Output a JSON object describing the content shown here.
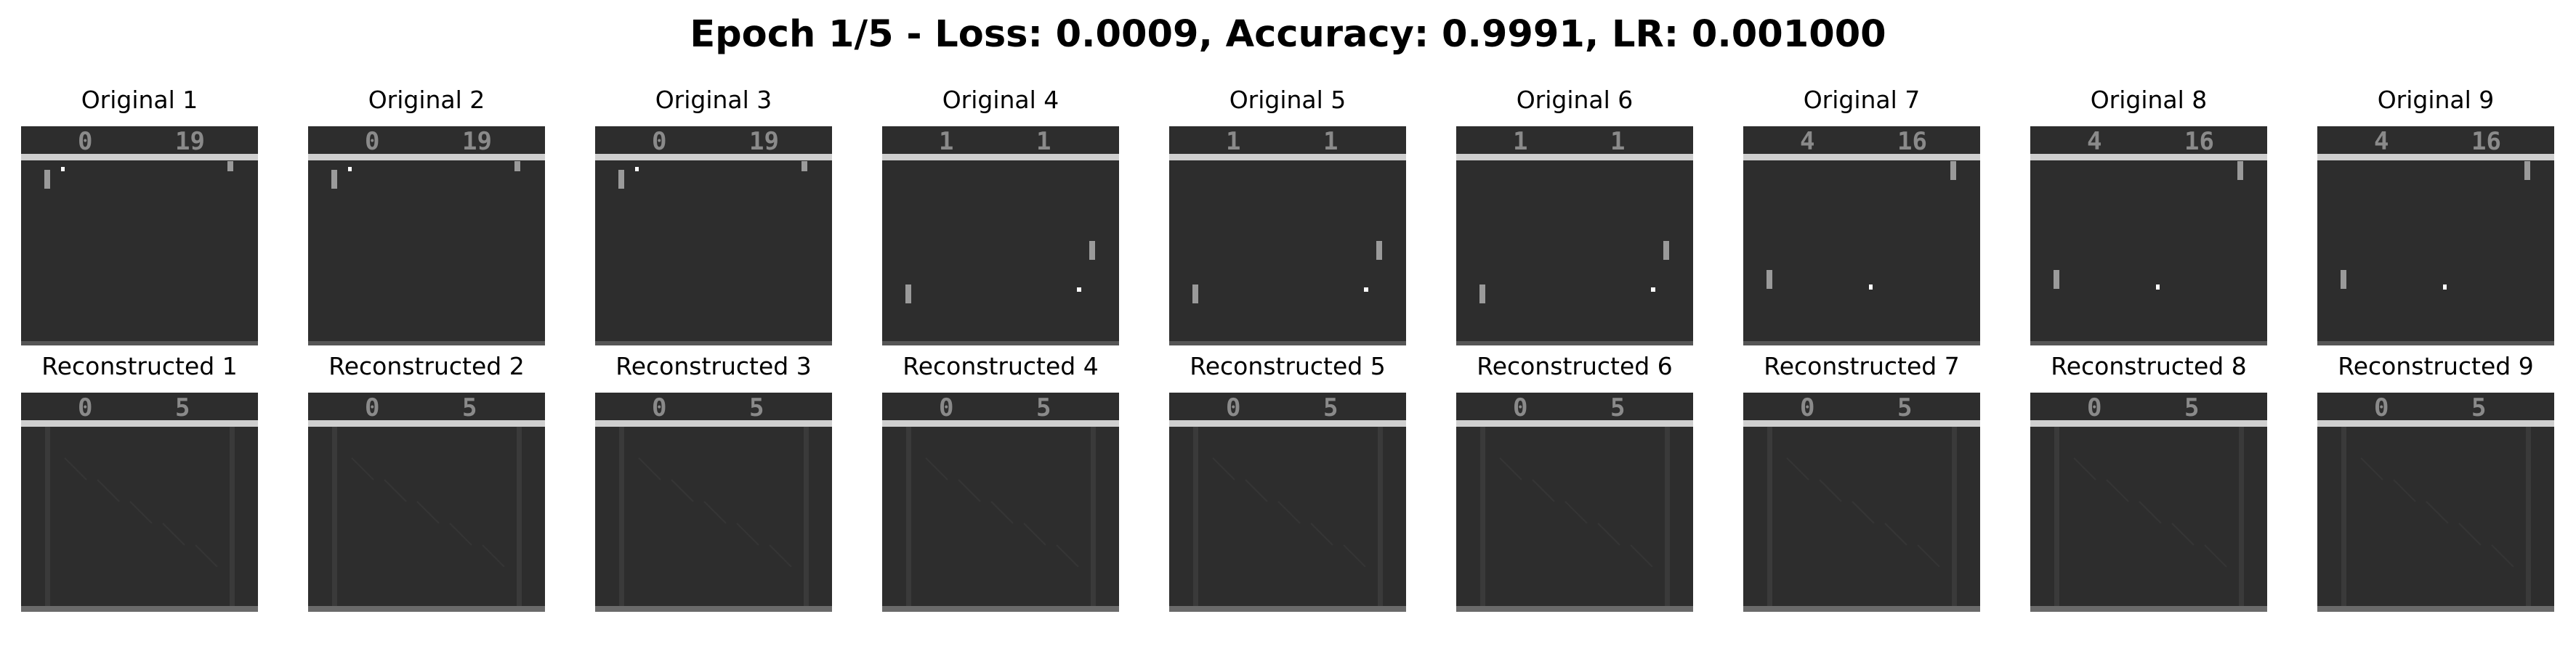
{
  "title": "Epoch 1/5 - Loss: 0.0009, Accuracy: 0.9991, LR: 0.001000",
  "colors": {
    "background": "#2d2d2d",
    "paddle": "#9a9a9a",
    "ball": "#ffffff",
    "bar": "#cfcfcf",
    "score": "#8a8a8a"
  },
  "originals": [
    {
      "label": "Original 1",
      "score_left": "0",
      "score_right": "19",
      "scene": "a"
    },
    {
      "label": "Original 2",
      "score_left": "0",
      "score_right": "19",
      "scene": "a"
    },
    {
      "label": "Original 3",
      "score_left": "0",
      "score_right": "19",
      "scene": "a"
    },
    {
      "label": "Original 4",
      "score_left": "1",
      "score_right": "1",
      "scene": "b"
    },
    {
      "label": "Original 5",
      "score_left": "1",
      "score_right": "1",
      "scene": "b"
    },
    {
      "label": "Original 6",
      "score_left": "1",
      "score_right": "1",
      "scene": "b"
    },
    {
      "label": "Original 7",
      "score_left": "4",
      "score_right": "16",
      "scene": "c"
    },
    {
      "label": "Original 8",
      "score_left": "4",
      "score_right": "16",
      "scene": "c"
    },
    {
      "label": "Original 9",
      "score_left": "4",
      "score_right": "16",
      "scene": "c"
    }
  ],
  "reconstructed": [
    {
      "label": "Reconstructed 1",
      "score_left": "0",
      "score_right": "5"
    },
    {
      "label": "Reconstructed 2",
      "score_left": "0",
      "score_right": "5"
    },
    {
      "label": "Reconstructed 3",
      "score_left": "0",
      "score_right": "5"
    },
    {
      "label": "Reconstructed 4",
      "score_left": "0",
      "score_right": "5"
    },
    {
      "label": "Reconstructed 5",
      "score_left": "0",
      "score_right": "5"
    },
    {
      "label": "Reconstructed 6",
      "score_left": "0",
      "score_right": "5"
    },
    {
      "label": "Reconstructed 7",
      "score_left": "0",
      "score_right": "5"
    },
    {
      "label": "Reconstructed 8",
      "score_left": "0",
      "score_right": "5"
    },
    {
      "label": "Reconstructed 9",
      "score_left": "0",
      "score_right": "5"
    }
  ]
}
